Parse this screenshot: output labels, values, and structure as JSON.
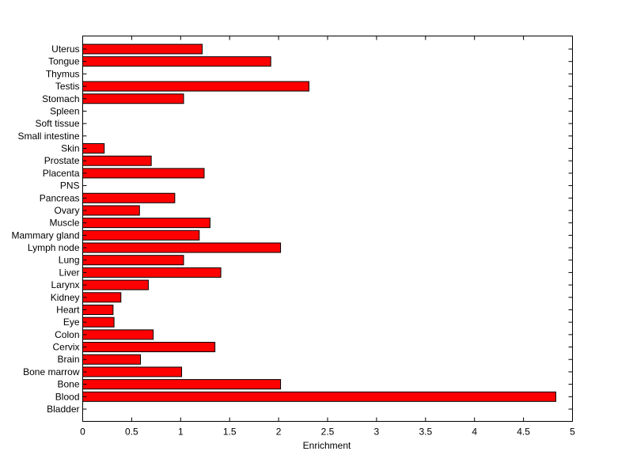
{
  "chart_data": {
    "type": "bar",
    "orientation": "horizontal",
    "categories": [
      "Bladder",
      "Blood",
      "Bone",
      "Bone marrow",
      "Brain",
      "Cervix",
      "Colon",
      "Eye",
      "Heart",
      "Kidney",
      "Larynx",
      "Liver",
      "Lung",
      "Lymph node",
      "Mammary gland",
      "Muscle",
      "Ovary",
      "Pancreas",
      "PNS",
      "Placenta",
      "Prostate",
      "Skin",
      "Small intestine",
      "Soft tissue",
      "Spleen",
      "Stomach",
      "Testis",
      "Thymus",
      "Tongue",
      "Uterus"
    ],
    "values": [
      0,
      4.83,
      2.02,
      1.01,
      0.59,
      1.35,
      0.72,
      0.32,
      0.31,
      0.39,
      0.67,
      1.41,
      1.03,
      2.02,
      1.19,
      1.3,
      0.58,
      0.94,
      0,
      1.24,
      0.7,
      0.22,
      0,
      0,
      0,
      1.03,
      2.31,
      0,
      1.92,
      1.22
    ],
    "title": "",
    "xlabel": "Enrichment",
    "ylabel": "",
    "xlim": [
      0,
      5
    ],
    "xticks": [
      "0",
      "0.5",
      "1",
      "1.5",
      "2",
      "2.5",
      "3",
      "3.5",
      "4",
      "4.5",
      "5"
    ],
    "bar_color": "#ff0000",
    "grid": false
  }
}
